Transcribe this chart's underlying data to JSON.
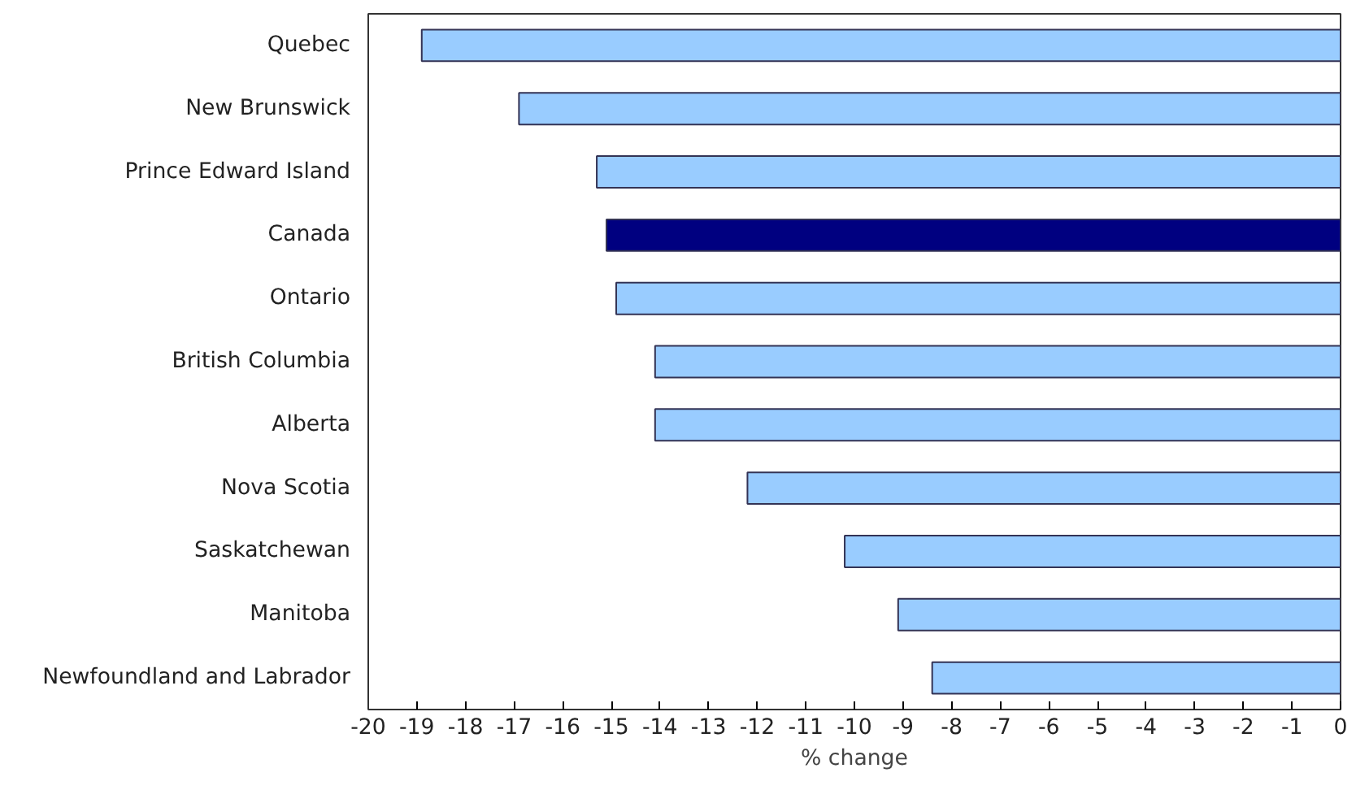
{
  "chart_data": {
    "type": "bar",
    "orientation": "horizontal",
    "xlabel": "% change",
    "categories": [
      "Quebec",
      "New Brunswick",
      "Prince Edward Island",
      "Canada",
      "Ontario",
      "British Columbia",
      "Alberta",
      "Nova Scotia",
      "Saskatchewan",
      "Manitoba",
      "Newfoundland and Labrador"
    ],
    "values": [
      -18.9,
      -16.9,
      -15.3,
      -15.1,
      -14.9,
      -14.1,
      -14.1,
      -12.2,
      -10.2,
      -9.1,
      -8.4
    ],
    "colors": [
      "#99ccff",
      "#99ccff",
      "#99ccff",
      "#000080",
      "#99ccff",
      "#99ccff",
      "#99ccff",
      "#99ccff",
      "#99ccff",
      "#99ccff",
      "#99ccff"
    ],
    "xlim": [
      -20,
      0
    ],
    "xticks": [
      -20,
      -19,
      -18,
      -17,
      -16,
      -15,
      -14,
      -13,
      -12,
      -11,
      -10,
      -9,
      -8,
      -7,
      -6,
      -5,
      -4,
      -3,
      -2,
      -1,
      0
    ],
    "grid": false
  }
}
